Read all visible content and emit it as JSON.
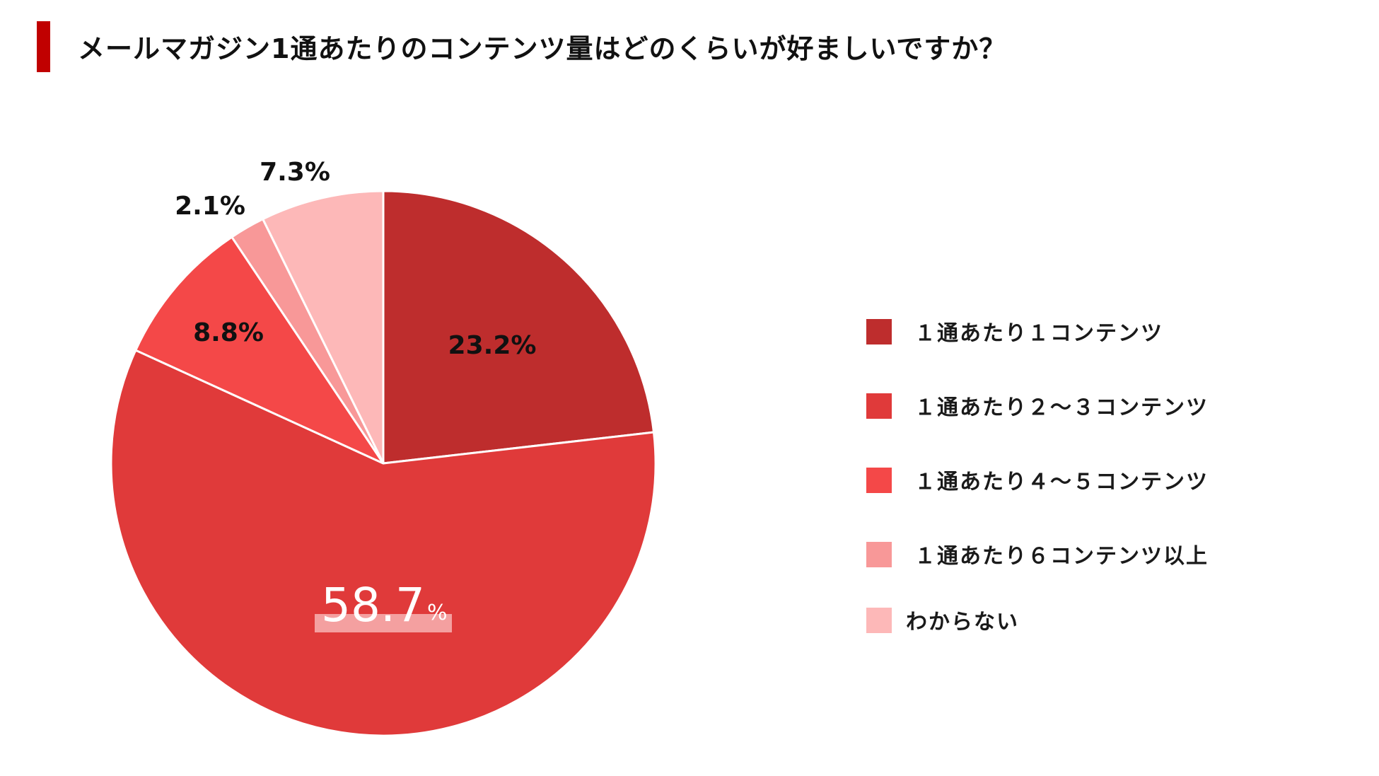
{
  "title": "メールマガジン1通あたりのコンテンツ量はどのくらいが好ましいですか？",
  "colors": {
    "title_bar": "#c00000",
    "highlight": "#f4a0a0"
  },
  "chart_data": {
    "type": "pie",
    "title": "メールマガジン1通あたりのコンテンツ量はどのくらいが好ましいですか？",
    "start_angle_deg": 0,
    "direction": "clockwise",
    "legend_position": "right",
    "slices": [
      {
        "label": "１通あたり１コンテンツ",
        "value": 23.2,
        "display": "23.2%",
        "color": "#be2d2d"
      },
      {
        "label": "１通あたり２～３コンテンツ",
        "value": 58.7,
        "display_number": "58.7",
        "display_unit": "%",
        "color": "#e03a3a"
      },
      {
        "label": "１通あたり４～５コンテンツ",
        "value": 8.8,
        "display": "8.8%",
        "color": "#f44848"
      },
      {
        "label": "１通あたり６コンテンツ以上",
        "value": 2.1,
        "display": "2.1%",
        "color": "#f89898"
      },
      {
        "label": "わからない",
        "value": 7.3,
        "display": "7.3%",
        "color": "#fdb8b8"
      }
    ]
  }
}
